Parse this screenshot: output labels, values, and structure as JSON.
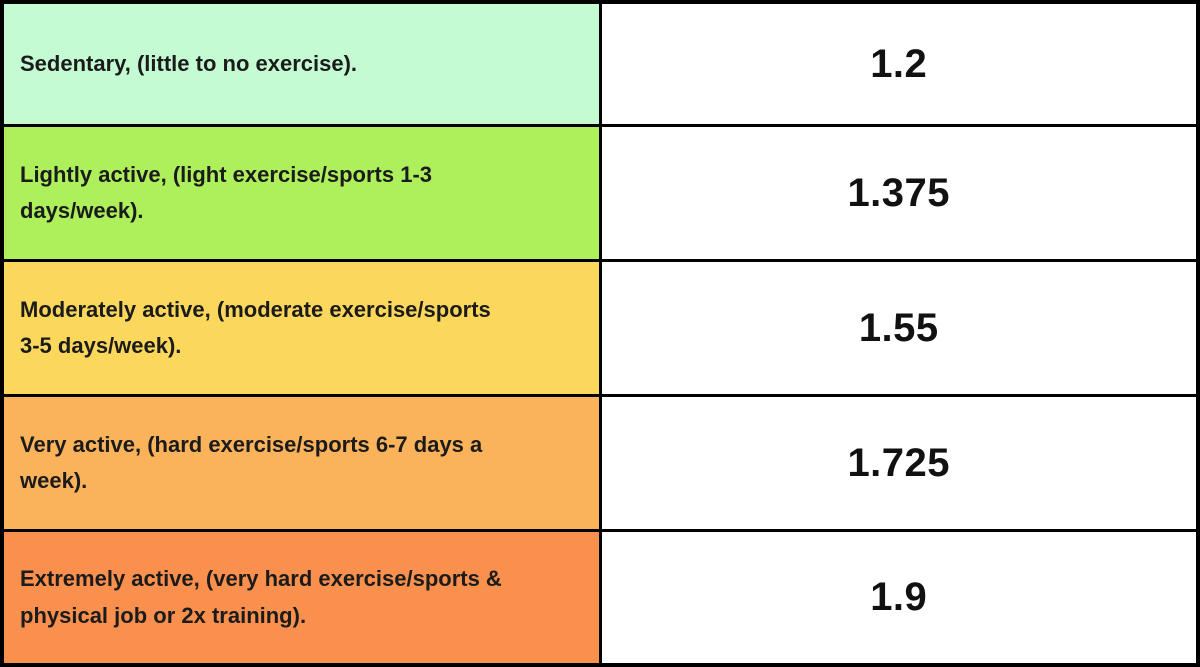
{
  "chart_data": {
    "type": "table",
    "title": "",
    "categories": [
      "Sedentary, (little to no exercise).",
      "Lightly active, (light exercise/sports 1-3 days/week).",
      "Moderately active, (moderate exercise/sports 3-5 days/week).",
      "Very active, (hard exercise/sports 6-7 days a week).",
      "Extremely active, (very hard exercise/sports & physical job or 2x training)."
    ],
    "values": [
      1.2,
      1.375,
      1.55,
      1.725,
      1.9
    ]
  },
  "table": {
    "border_color": "#000000",
    "value_bg": "#ffffff",
    "text_color": "#1b1b1b",
    "rows": [
      {
        "label": "Sedentary, (little to no exercise).",
        "lines": [
          "Sedentary, (little to no exercise)."
        ],
        "value": "1.2",
        "bg": "#c4fbd3"
      },
      {
        "label": "Lightly active, (light exercise/sports 1-3 days/week).",
        "lines": [
          "Lightly active, (light exercise/sports 1-3",
          "days/week)."
        ],
        "value": "1.375",
        "bg": "#aeef5c"
      },
      {
        "label": "Moderately active, (moderate exercise/sports 3-5 days/week).",
        "lines": [
          "Moderately active, (moderate exercise/sports",
          "3-5 days/week)."
        ],
        "value": "1.55",
        "bg": "#fbd75b"
      },
      {
        "label": "Very active, (hard exercise/sports 6-7 days a week).",
        "lines": [
          "Very active, (hard exercise/sports 6-7 days a",
          "week)."
        ],
        "value": "1.725",
        "bg": "#fbb35b"
      },
      {
        "label": "Extremely active, (very hard exercise/sports & physical job or 2x training).",
        "lines": [
          "Extremely active, (very hard exercise/sports &",
          "physical job or 2x training)."
        ],
        "value": "1.9",
        "bg": "#f9904d"
      }
    ]
  }
}
